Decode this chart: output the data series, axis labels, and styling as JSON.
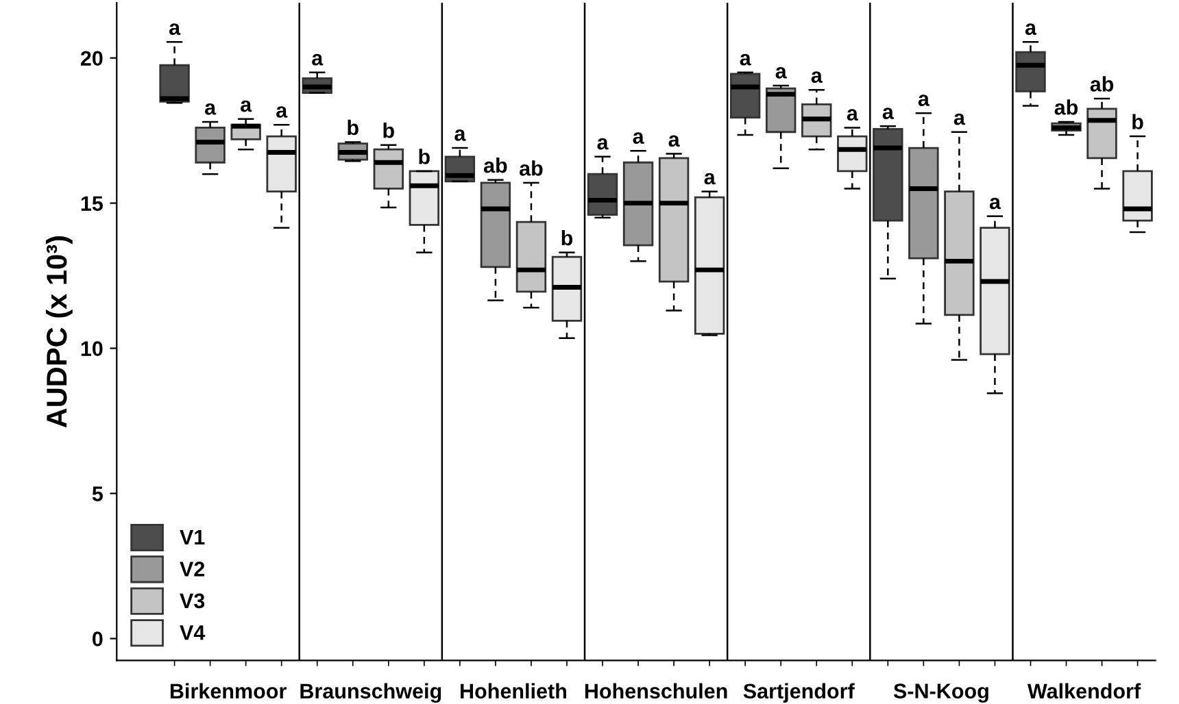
{
  "chart_data": {
    "type": "box",
    "ylabel": "AUDPC (x 10³)",
    "categories": [
      "Birkenmoor",
      "Braunschweig",
      "Hohenlieth",
      "Hohenschulen",
      "Sartjendorf",
      "S-N-Koog",
      "Walkendorf"
    ],
    "ylim": [
      -0.75,
      21.9
    ],
    "yticks": [
      0,
      5,
      10,
      15,
      20
    ],
    "grid": false,
    "legend": "bottom left",
    "series": [
      {
        "name": "V1",
        "color": "#4d4d4d",
        "value_labels": [
          "a",
          "a",
          "a",
          "a",
          "a",
          "a",
          "a"
        ],
        "boxes": [
          {
            "low": 18.45,
            "q1": 18.5,
            "median": 18.6,
            "q3": 19.75,
            "high": 20.55
          },
          {
            "low": 18.8,
            "q1": 18.8,
            "median": 19.0,
            "q3": 19.3,
            "high": 19.5
          },
          {
            "low": 15.75,
            "q1": 15.75,
            "median": 15.95,
            "q3": 16.6,
            "high": 16.9
          },
          {
            "low": 14.5,
            "q1": 14.6,
            "median": 15.1,
            "q3": 16.0,
            "high": 16.6
          },
          {
            "low": 17.35,
            "q1": 17.95,
            "median": 19.0,
            "q3": 19.45,
            "high": 19.5
          },
          {
            "low": 12.4,
            "q1": 14.4,
            "median": 16.9,
            "q3": 17.55,
            "high": 17.65
          },
          {
            "low": 18.35,
            "q1": 18.85,
            "median": 19.75,
            "q3": 20.2,
            "high": 20.55
          }
        ]
      },
      {
        "name": "V2",
        "color": "#999999",
        "value_labels": [
          "a",
          "b",
          "ab",
          "a",
          "a",
          "a",
          "ab"
        ],
        "boxes": [
          {
            "low": 16.0,
            "q1": 16.4,
            "median": 17.1,
            "q3": 17.6,
            "high": 17.8
          },
          {
            "low": 16.45,
            "q1": 16.5,
            "median": 16.75,
            "q3": 17.05,
            "high": 17.1
          },
          {
            "low": 11.65,
            "q1": 12.8,
            "median": 14.8,
            "q3": 15.7,
            "high": 15.8
          },
          {
            "low": 13.0,
            "q1": 13.55,
            "median": 15.0,
            "q3": 16.4,
            "high": 16.8
          },
          {
            "low": 16.2,
            "q1": 17.45,
            "median": 18.75,
            "q3": 18.95,
            "high": 19.05
          },
          {
            "low": 10.85,
            "q1": 13.1,
            "median": 15.5,
            "q3": 16.9,
            "high": 18.1
          },
          {
            "low": 17.35,
            "q1": 17.5,
            "median": 17.6,
            "q3": 17.75,
            "high": 17.8
          }
        ]
      },
      {
        "name": "V3",
        "color": "#c4c4c4",
        "value_labels": [
          "a",
          "b",
          "ab",
          "a",
          "a",
          "a",
          "ab"
        ],
        "boxes": [
          {
            "low": 16.85,
            "q1": 17.2,
            "median": 17.65,
            "q3": 17.7,
            "high": 17.9
          },
          {
            "low": 14.85,
            "q1": 15.5,
            "median": 16.4,
            "q3": 16.85,
            "high": 17.0
          },
          {
            "low": 11.4,
            "q1": 11.95,
            "median": 12.7,
            "q3": 14.35,
            "high": 15.7
          },
          {
            "low": 11.3,
            "q1": 12.3,
            "median": 15.0,
            "q3": 16.55,
            "high": 16.7
          },
          {
            "low": 16.85,
            "q1": 17.3,
            "median": 17.9,
            "q3": 18.4,
            "high": 18.9
          },
          {
            "low": 9.6,
            "q1": 11.15,
            "median": 13.0,
            "q3": 15.4,
            "high": 17.45
          },
          {
            "low": 15.5,
            "q1": 16.55,
            "median": 17.85,
            "q3": 18.25,
            "high": 18.6
          }
        ]
      },
      {
        "name": "V4",
        "color": "#e6e6e6",
        "value_labels": [
          "a",
          "b",
          "b",
          "a",
          "a",
          "a",
          "b"
        ],
        "boxes": [
          {
            "low": 14.15,
            "q1": 15.4,
            "median": 16.75,
            "q3": 17.3,
            "high": 17.7
          },
          {
            "low": 13.3,
            "q1": 14.25,
            "median": 15.6,
            "q3": 16.1,
            "high": 16.1
          },
          {
            "low": 10.35,
            "q1": 10.95,
            "median": 12.1,
            "q3": 13.15,
            "high": 13.3
          },
          {
            "low": 10.45,
            "q1": 10.5,
            "median": 12.7,
            "q3": 15.2,
            "high": 15.4
          },
          {
            "low": 15.5,
            "q1": 16.1,
            "median": 16.85,
            "q3": 17.3,
            "high": 17.6
          },
          {
            "low": 8.45,
            "q1": 9.8,
            "median": 12.3,
            "q3": 14.15,
            "high": 14.55
          },
          {
            "low": 14.0,
            "q1": 14.4,
            "median": 14.8,
            "q3": 16.1,
            "high": 17.3
          }
        ]
      }
    ]
  }
}
